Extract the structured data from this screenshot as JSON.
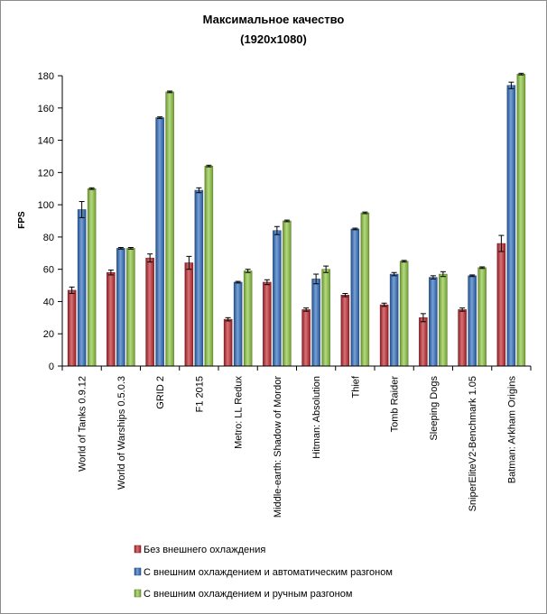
{
  "chart_data": {
    "type": "bar",
    "title": "Максимальное качество",
    "subtitle": "(1920x1080)",
    "xlabel": "",
    "ylabel": "FPS",
    "ylim": [
      0,
      180
    ],
    "yticks": [
      0,
      20,
      40,
      60,
      80,
      100,
      120,
      140,
      160,
      180
    ],
    "grid": false,
    "legend_position": "bottom",
    "categories": [
      "World of Tanks 0.9.12",
      "World of Warships 0.5.0.3",
      "GRID 2",
      "F1 2015",
      "Metro: LL Redux",
      "Middle-earth: Shadow of Mordor",
      "Hitman: Absolution",
      "Thief",
      "Tomb Raider",
      "Sleeping Dogs",
      "SniperEliteV2-Benchmark 1.05",
      "Batman: Arkham Origins"
    ],
    "series": [
      {
        "name": "Без внешнего  охлаждения",
        "color": "#c0272d",
        "values": [
          47,
          58,
          67,
          64,
          29,
          52,
          35,
          44,
          38,
          30,
          35,
          76
        ],
        "errors": [
          2,
          1.5,
          2.5,
          4,
          1,
          1.5,
          1,
          1,
          1,
          2.5,
          1,
          5
        ]
      },
      {
        "name": "С внешним  охлаждением  и автоматическим разгоном",
        "color": "#2e6dbf",
        "values": [
          97,
          73,
          154,
          109,
          52,
          84,
          54,
          85,
          57,
          55,
          56,
          174
        ],
        "errors": [
          5,
          0.5,
          0.5,
          1.5,
          0.5,
          2.5,
          3,
          0.5,
          1,
          1,
          0.5,
          2
        ]
      },
      {
        "name": "С внешним  охлаждением  и ручным разгоном",
        "color": "#8dc63f",
        "values": [
          110,
          73,
          170,
          124,
          59,
          90,
          60,
          95,
          65,
          57,
          61,
          181
        ],
        "errors": [
          0.5,
          0.5,
          0.5,
          0.5,
          1,
          0.5,
          2,
          0.5,
          0.5,
          1.5,
          0.5,
          0.5
        ]
      }
    ]
  }
}
